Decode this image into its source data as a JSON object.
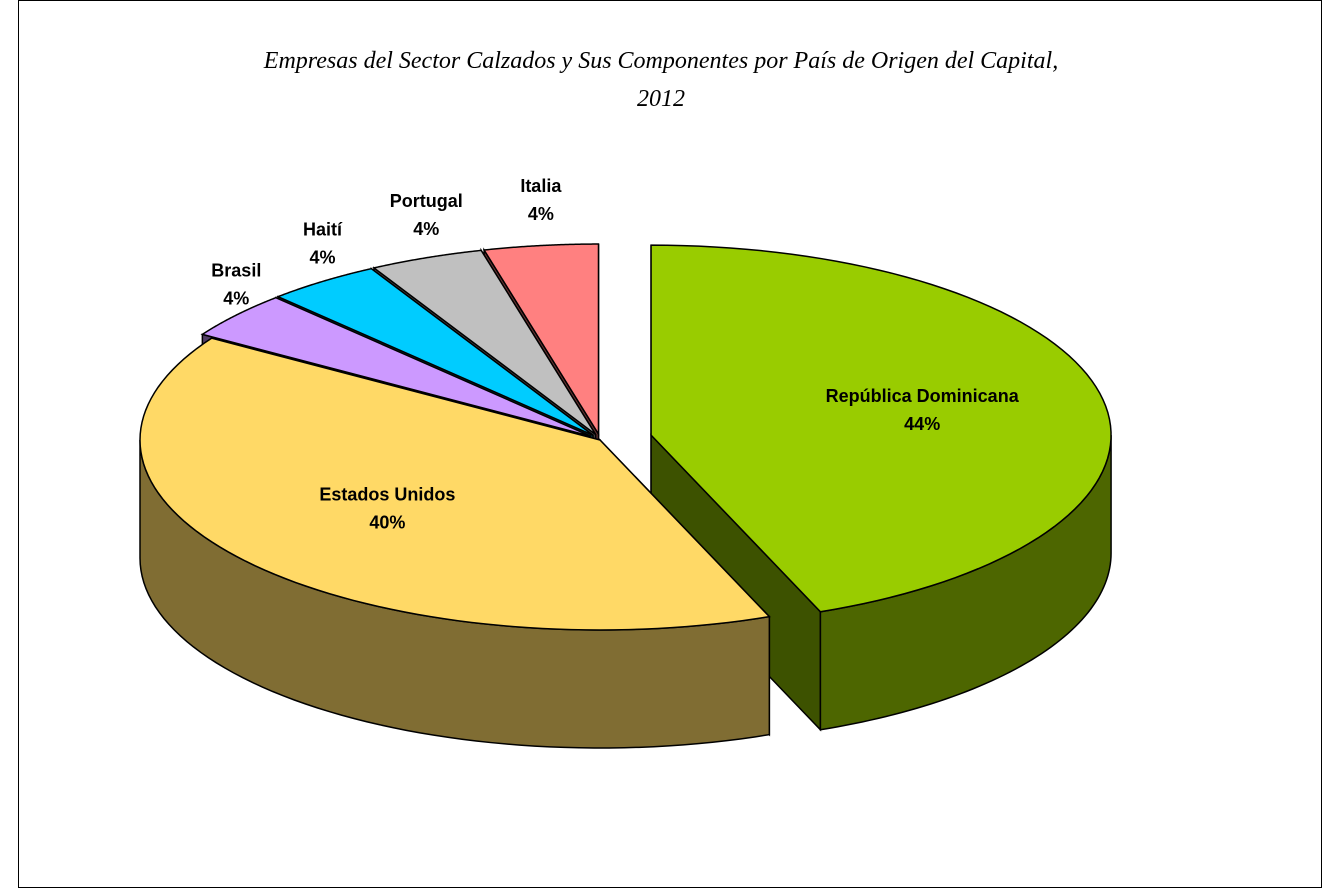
{
  "chart_data": {
    "type": "pie3d",
    "title": "Empresas del Sector Calzados y Sus Componentes por País de Origen del Capital, 2012",
    "categories": [
      "República Dominicana",
      "Estados Unidos",
      "Brasil",
      "Haití",
      "Portugal",
      "Italia"
    ],
    "values": [
      44,
      40,
      4,
      4,
      4,
      4
    ],
    "value_labels": [
      "44%",
      "40%",
      "4%",
      "4%",
      "4%",
      "4%"
    ],
    "colors": [
      "#99cc00",
      "#ffd966",
      "#cc99ff",
      "#00ccff",
      "#c0c0c0",
      "#ff8080"
    ]
  }
}
